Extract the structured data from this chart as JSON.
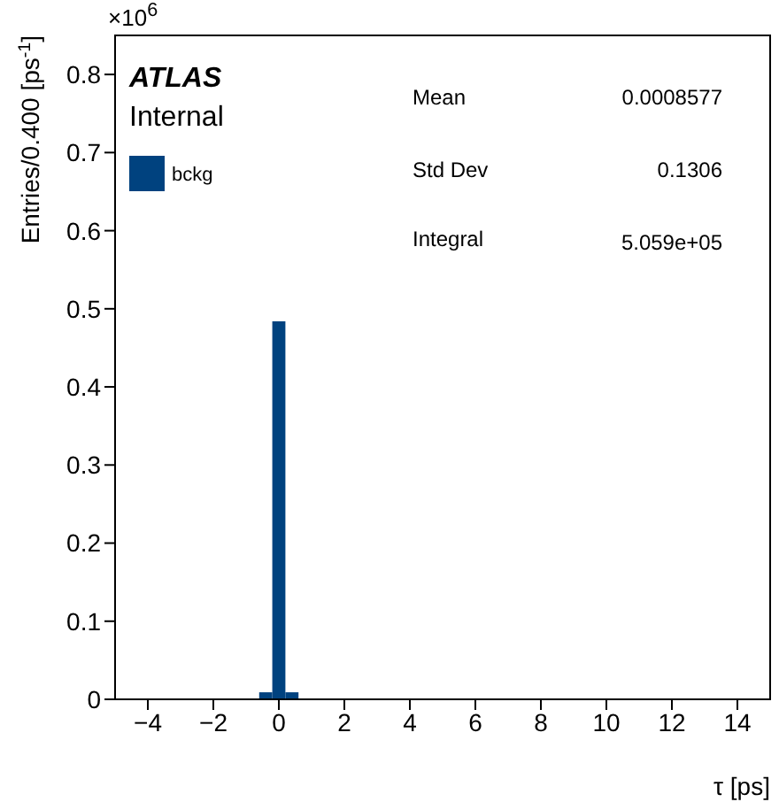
{
  "chart_data": {
    "type": "histogram",
    "xlabel": "τ [ps]",
    "ylabel": "Entries/0.400 [ps$^{-1}$]",
    "bins": [
      -0.6,
      -0.2,
      0.2,
      0.6
    ],
    "series": [
      {
        "name": "bckg",
        "color": "#00427f",
        "values": [
          0.009,
          0.484,
          0.009
        ]
      }
    ],
    "xlim": [
      -5,
      15
    ],
    "xticks": [
      {
        "value": -4,
        "label": "−4"
      },
      {
        "value": -2,
        "label": "−2"
      },
      0,
      2,
      4,
      6,
      8,
      10,
      12,
      14
    ],
    "ylim": [
      0,
      0.85
    ],
    "yticks": [
      0,
      0.1,
      0.2,
      0.3,
      0.4,
      0.5,
      0.6,
      0.7,
      0.8
    ],
    "grid": false,
    "legend": "top left",
    "annotations": [
      "×10$^{6}$",
      "ATLAS",
      "Internal",
      "Mean",
      "0.0008577",
      "Std Dev",
      "0.1306",
      "Integral",
      "5.059e+05"
    ]
  }
}
